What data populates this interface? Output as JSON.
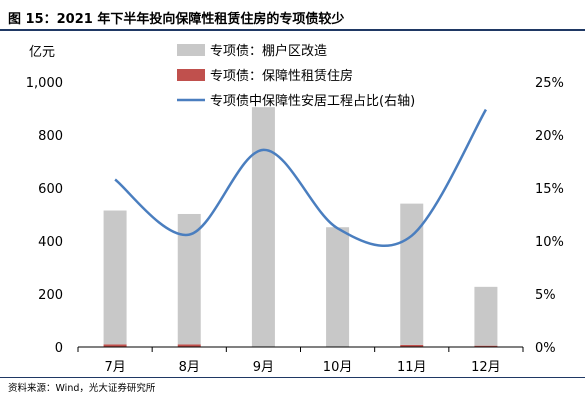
{
  "title": "图 15：2021 年下半年投向保障性租赁住房的专项债较少",
  "source": "资料来源：Wind，光大证券研究所",
  "chart_data": {
    "type": "bar",
    "categories": [
      "7月",
      "8月",
      "9月",
      "10月",
      "11月",
      "12月"
    ],
    "series": [
      {
        "name": "专项债：棚户区改造",
        "type": "bar",
        "axis": "left",
        "color": "#c8c8c8",
        "values": [
          505,
          492,
          905,
          452,
          533,
          222
        ]
      },
      {
        "name": "专项债：保障性租赁住房",
        "type": "bar",
        "axis": "left",
        "color": "#c0504d",
        "values": [
          10,
          10,
          0,
          0,
          8,
          5
        ]
      },
      {
        "name": "专项债中保障性安居工程占比(右轴)",
        "type": "line",
        "axis": "right",
        "color": "#4a7ebf",
        "values": [
          15.8,
          10.6,
          18.6,
          11.2,
          10.5,
          22.4
        ]
      }
    ],
    "left_axis": {
      "label": "亿元",
      "min": 0,
      "max": 1000,
      "ticks": [
        0,
        200,
        400,
        600,
        800,
        1000
      ],
      "tick_labels": [
        "0",
        "200",
        "400",
        "600",
        "800",
        "1,000"
      ]
    },
    "right_axis": {
      "min": 0,
      "max": 25,
      "ticks": [
        0,
        5,
        10,
        15,
        20,
        25
      ],
      "tick_labels": [
        "0%",
        "5%",
        "10%",
        "15%",
        "20%",
        "25%"
      ]
    },
    "grid": false,
    "legend_position": "top-center"
  }
}
